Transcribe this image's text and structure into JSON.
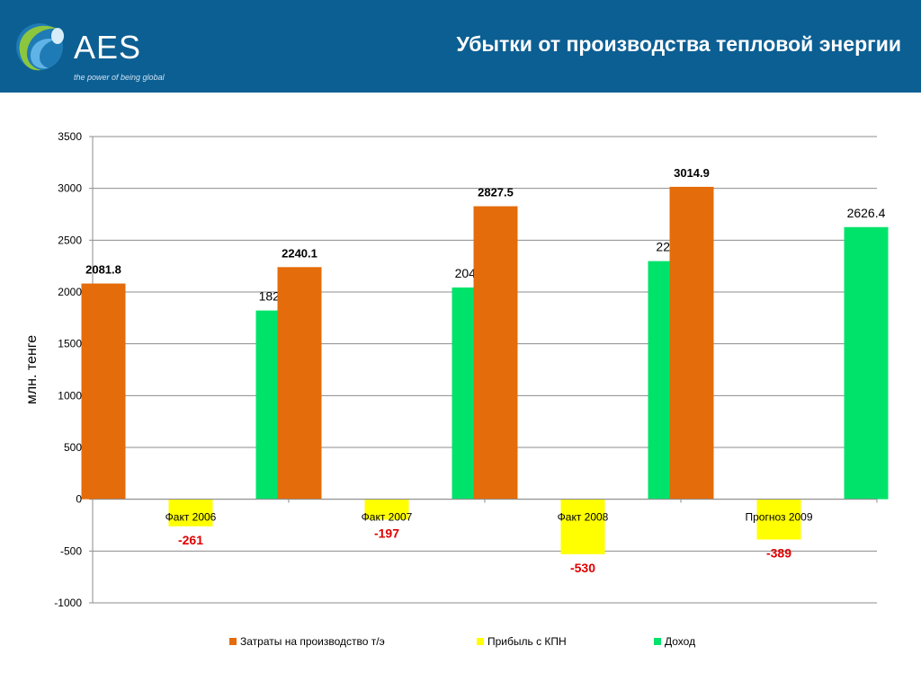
{
  "header": {
    "logo_text": "AES",
    "logo_tagline": "the power of being global",
    "title": "Убытки от производства тепловой энергии"
  },
  "chart_data": {
    "type": "bar",
    "categories": [
      "Факт 2006",
      "Факт 2007",
      "Факт 2008",
      "Прогноз 2009"
    ],
    "series": [
      {
        "name": "Затраты на производство т/э",
        "color": "#e46c0a",
        "values": [
          2081.8,
          2240.1,
          2827.5,
          3014.9
        ],
        "labels": [
          "2081.8",
          "2240.1",
          "2827.5",
          "3014.9"
        ],
        "label_style": "bold"
      },
      {
        "name": "Прибыль с КПН",
        "color": "#ffff00",
        "values": [
          -261,
          -197,
          -530,
          -389
        ],
        "labels": [
          "-261",
          "-197",
          "-530",
          "-389"
        ],
        "label_style": "bold-red"
      },
      {
        "name": "Доход",
        "color": "#00e36b",
        "values": [
          1821.4,
          2043.5,
          2298,
          2626.4
        ],
        "labels": [
          "1821.4",
          "2043.5",
          "2298",
          "2626.4"
        ],
        "label_style": "normal"
      }
    ],
    "ylabel": "млн. тенге",
    "ylim": [
      -1000,
      3500
    ],
    "yticks": [
      "3500",
      "3000",
      "2500",
      "2000",
      "1500",
      "1000",
      "500",
      "0",
      "-500",
      "-1000"
    ],
    "grid": true,
    "legend_position": "bottom"
  }
}
